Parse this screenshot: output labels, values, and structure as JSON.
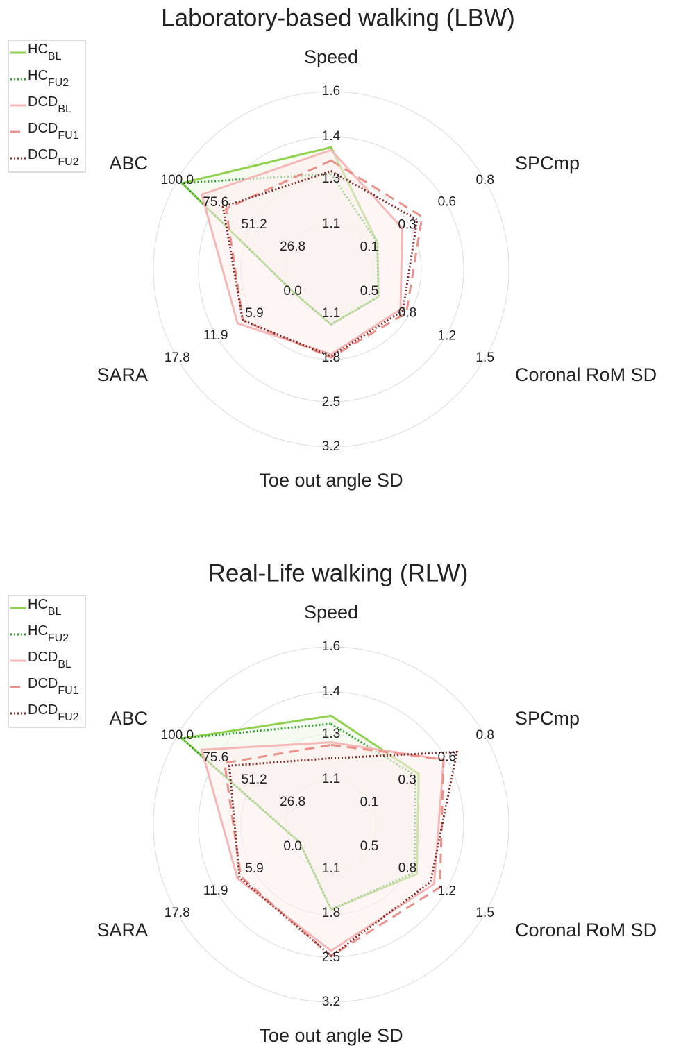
{
  "chart_data": [
    {
      "type": "radar",
      "title": "Laboratory-based walking (LBW)",
      "legend": "upper left",
      "grid": true,
      "axes": [
        {
          "name": "Speed",
          "lim": [
            0.93,
            1.6
          ],
          "ticks": [
            1.1,
            {
              "value": 1.27,
              "label": "1.3"
            },
            {
              "value": 1.43,
              "label": "1.4"
            },
            1.6
          ]
        },
        {
          "name": "SPCmp",
          "lim": [
            -0.13,
            0.8
          ],
          "ticks": [
            0.1,
            {
              "value": 0.33,
              "label": "0.3"
            },
            {
              "value": 0.57,
              "label": "0.6"
            },
            0.8
          ]
        },
        {
          "name": "Coronal RoM SD",
          "lim": [
            0.17,
            1.5
          ],
          "ticks": [
            0.5,
            {
              "value": 0.83,
              "label": "0.8"
            },
            {
              "value": 1.17,
              "label": "1.2"
            },
            1.5
          ]
        },
        {
          "name": "Toe out angle SD",
          "lim": [
            0.4,
            3.2
          ],
          "ticks": [
            1.1,
            1.8,
            2.5,
            3.2
          ]
        },
        {
          "name": "SARA",
          "lim": [
            -5.93,
            17.8
          ],
          "ticks": [
            {
              "value": 0,
              "label": "0.0"
            },
            5.9,
            {
              "value": 11.87,
              "label": "11.9"
            },
            17.8
          ]
        },
        {
          "name": "ABC",
          "lim": [
            2.4,
            100
          ],
          "ticks": [
            26.8,
            51.2,
            75.6,
            {
              "value": 100,
              "label": "100.0"
            }
          ]
        }
      ],
      "series": [
        {
          "name": "HC",
          "sub": "BL",
          "color": "#92d050",
          "dash": "solid",
          "fill": "#eef8e6",
          "values": [
            1.39,
            0.15,
            0.58,
            1.27,
            0,
            97
          ]
        },
        {
          "name": "HC",
          "sub": "FU2",
          "color": "#2e9e2e",
          "dash": "dotted",
          "values": [
            1.29,
            0.15,
            0.58,
            1.27,
            0,
            97
          ]
        },
        {
          "name": "DCD",
          "sub": "BL",
          "color": "#f4b8b8",
          "dash": "solid",
          "fill": "#fdeeee",
          "values": [
            1.38,
            0.3,
            0.77,
            1.74,
            8.5,
            84.5
          ]
        },
        {
          "name": "DCD",
          "sub": "FU1",
          "color": "#e8908a",
          "dash": "dashed",
          "values": [
            1.34,
            0.42,
            0.82,
            1.79,
            7.7,
            69
          ]
        },
        {
          "name": "DCD",
          "sub": "FU2",
          "color": "#7b2a2a",
          "dash": "dotted",
          "values": [
            1.3,
            0.39,
            0.79,
            1.77,
            7.7,
            71
          ]
        }
      ]
    },
    {
      "type": "radar",
      "title": "Real-Life walking (RLW)",
      "legend": "upper left",
      "grid": true,
      "axes": [
        {
          "name": "Speed",
          "lim": [
            0.93,
            1.6
          ],
          "ticks": [
            1.1,
            {
              "value": 1.27,
              "label": "1.3"
            },
            {
              "value": 1.43,
              "label": "1.4"
            },
            1.6
          ]
        },
        {
          "name": "SPCmp",
          "lim": [
            -0.13,
            0.8
          ],
          "ticks": [
            0.1,
            {
              "value": 0.33,
              "label": "0.3"
            },
            {
              "value": 0.57,
              "label": "0.6"
            },
            0.8
          ]
        },
        {
          "name": "Coronal RoM SD",
          "lim": [
            0.17,
            1.5
          ],
          "ticks": [
            0.5,
            {
              "value": 0.83,
              "label": "0.8"
            },
            {
              "value": 1.17,
              "label": "1.2"
            },
            1.5
          ]
        },
        {
          "name": "Toe out angle SD",
          "lim": [
            0.4,
            3.2
          ],
          "ticks": [
            1.1,
            1.8,
            2.5,
            3.2
          ]
        },
        {
          "name": "SARA",
          "lim": [
            -5.93,
            17.8
          ],
          "ticks": [
            {
              "value": 0,
              "label": "0.0"
            },
            5.9,
            {
              "value": 11.87,
              "label": "11.9"
            },
            17.8
          ]
        },
        {
          "name": "ABC",
          "lim": [
            2.4,
            100
          ],
          "ticks": [
            26.8,
            51.2,
            75.6,
            {
              "value": 100,
              "label": "100.0"
            }
          ]
        }
      ],
      "series": [
        {
          "name": "HC",
          "sub": "BL",
          "color": "#92d050",
          "dash": "solid",
          "fill": "#eef8e6",
          "values": [
            1.34,
            0.4,
            0.91,
            1.74,
            -1.1,
            97
          ]
        },
        {
          "name": "HC",
          "sub": "FU2",
          "color": "#2e9e2e",
          "dash": "dotted",
          "values": [
            1.31,
            0.38,
            0.89,
            1.74,
            -1.1,
            97
          ]
        },
        {
          "name": "DCD",
          "sub": "BL",
          "color": "#f4b8b8",
          "dash": "solid",
          "fill": "#fdeeee",
          "values": [
            1.24,
            0.55,
            1.06,
            2.39,
            8.5,
            84.5
          ]
        },
        {
          "name": "DCD",
          "sub": "FU1",
          "color": "#e8908a",
          "dash": "dashed",
          "values": [
            1.23,
            0.55,
            1.11,
            2.47,
            8.0,
            70
          ]
        },
        {
          "name": "DCD",
          "sub": "FU2",
          "color": "#7b2a2a",
          "dash": "dotted",
          "values": [
            1.18,
            0.63,
            1.03,
            2.47,
            8.2,
            67
          ]
        }
      ]
    }
  ]
}
